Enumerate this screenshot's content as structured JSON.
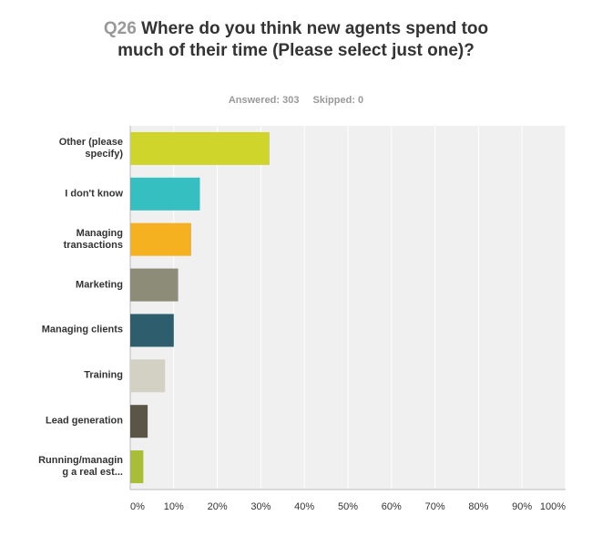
{
  "chart_data": {
    "type": "bar",
    "orientation": "horizontal",
    "title_prefix": "Q26",
    "title": "Where do you think new agents spend too much of their time (Please select just one)?",
    "answered": "Answered: 303",
    "skipped": "Skipped: 0",
    "categories": [
      "Other (please specify)",
      "I don't know",
      "Managing transactions",
      "Marketing",
      "Managing clients",
      "Training",
      "Lead generation",
      "Running/managing a real est..."
    ],
    "values": [
      32,
      16,
      14,
      11,
      10,
      8,
      4,
      3
    ],
    "colors": [
      "#d0d52c",
      "#36bfc1",
      "#f5b120",
      "#8c8c79",
      "#2e5e6e",
      "#d3d1c4",
      "#5a5547",
      "#a9bd38"
    ],
    "xlim": [
      0,
      100
    ],
    "xticks": [
      {
        "value": 0,
        "label": "0%"
      },
      {
        "value": 10,
        "label": "10%"
      },
      {
        "value": 20,
        "label": "20%"
      },
      {
        "value": 30,
        "label": "30%"
      },
      {
        "value": 40,
        "label": "40%"
      },
      {
        "value": 50,
        "label": "50%"
      },
      {
        "value": 60,
        "label": "60%"
      },
      {
        "value": 70,
        "label": "70%"
      },
      {
        "value": 80,
        "label": "80%"
      },
      {
        "value": 90,
        "label": "90%"
      },
      {
        "value": 100,
        "label": "100%"
      }
    ],
    "grid": true
  }
}
